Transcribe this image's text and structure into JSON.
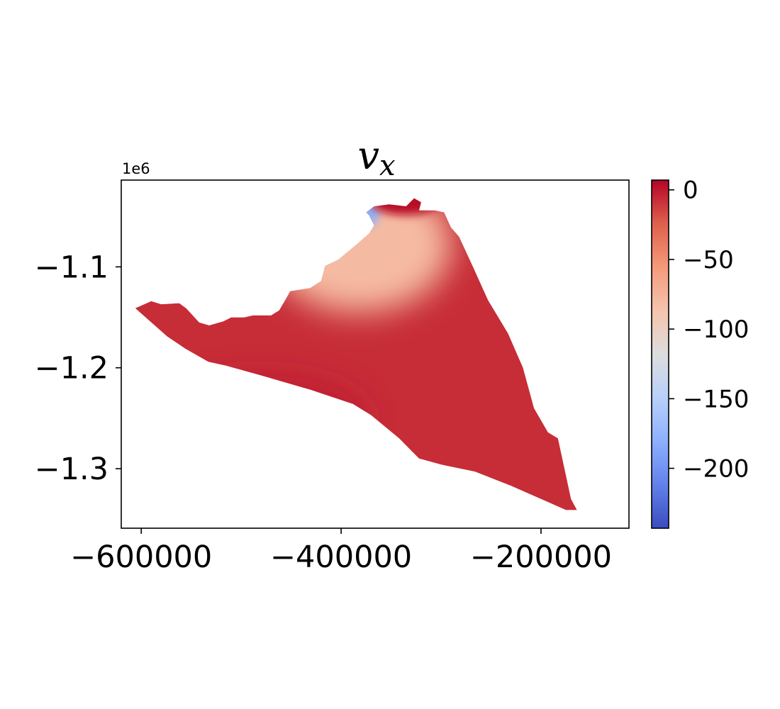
{
  "chart_data": {
    "type": "heatmap",
    "title": "v",
    "title_subscript": "x",
    "xlabel": "",
    "ylabel": "",
    "xlim": [
      -620000,
      -112000
    ],
    "ylim": [
      -1359000,
      -1014000
    ],
    "x_offset_text": "",
    "y_offset_text": "1e6",
    "x_ticks": [
      {
        "value": -600000,
        "label": "−600000"
      },
      {
        "value": -400000,
        "label": "−400000"
      },
      {
        "value": -200000,
        "label": "−200000"
      }
    ],
    "y_ticks": [
      {
        "value": -1100000,
        "label": "−1.1"
      },
      {
        "value": -1200000,
        "label": "−1.2"
      },
      {
        "value": -1300000,
        "label": "−1.3"
      }
    ],
    "colorbar": {
      "colormap": "coolwarm",
      "range": [
        -243,
        7
      ],
      "ticks": [
        {
          "value": 0,
          "label": "0"
        },
        {
          "value": -50,
          "label": "−50"
        },
        {
          "value": -100,
          "label": "−100"
        },
        {
          "value": -150,
          "label": "−150"
        },
        {
          "value": -200,
          "label": "−200"
        }
      ],
      "colors": {
        "low": "#3b4cc0",
        "mid": "#dddddd",
        "high": "#b40426"
      }
    },
    "domain_outline": [
      [
        -606000,
        -1141000
      ],
      [
        -590000,
        -1134000
      ],
      [
        -580000,
        -1137000
      ],
      [
        -562000,
        -1136000
      ],
      [
        -555000,
        -1141000
      ],
      [
        -542000,
        -1155000
      ],
      [
        -532000,
        -1158000
      ],
      [
        -518000,
        -1154000
      ],
      [
        -510000,
        -1150000
      ],
      [
        -497000,
        -1150000
      ],
      [
        -488000,
        -1148000
      ],
      [
        -470000,
        -1148000
      ],
      [
        -462000,
        -1143000
      ],
      [
        -456000,
        -1133000
      ],
      [
        -451000,
        -1124000
      ],
      [
        -431000,
        -1121000
      ],
      [
        -420000,
        -1114000
      ],
      [
        -416000,
        -1099000
      ],
      [
        -403000,
        -1093000
      ],
      [
        -386000,
        -1079000
      ],
      [
        -372000,
        -1067000
      ],
      [
        -367000,
        -1059000
      ],
      [
        -372000,
        -1049000
      ],
      [
        -375000,
        -1046000
      ],
      [
        -367000,
        -1040000
      ],
      [
        -352000,
        -1038000
      ],
      [
        -335000,
        -1040000
      ],
      [
        -327000,
        -1032000
      ],
      [
        -320000,
        -1036000
      ],
      [
        -322000,
        -1044000
      ],
      [
        -306000,
        -1044000
      ],
      [
        -297000,
        -1046000
      ],
      [
        -290000,
        -1061000
      ],
      [
        -282000,
        -1070000
      ],
      [
        -268000,
        -1100000
      ],
      [
        -253000,
        -1133000
      ],
      [
        -233000,
        -1166000
      ],
      [
        -218000,
        -1200000
      ],
      [
        -207000,
        -1240000
      ],
      [
        -193000,
        -1264000
      ],
      [
        -183000,
        -1270000
      ],
      [
        -170000,
        -1330000
      ],
      [
        -164000,
        -1341000
      ],
      [
        -175000,
        -1341000
      ],
      [
        -230000,
        -1317000
      ],
      [
        -266000,
        -1303000
      ],
      [
        -300000,
        -1296000
      ],
      [
        -322000,
        -1290000
      ],
      [
        -342000,
        -1270000
      ],
      [
        -370000,
        -1247000
      ],
      [
        -388000,
        -1236000
      ],
      [
        -430000,
        -1222000
      ],
      [
        -482000,
        -1207000
      ],
      [
        -515000,
        -1198000
      ],
      [
        -533000,
        -1194000
      ],
      [
        -556000,
        -1181000
      ],
      [
        -574000,
        -1169000
      ],
      [
        -590000,
        -1155000
      ]
    ],
    "field_features": [
      {
        "kind": "background",
        "value": -7
      },
      {
        "kind": "slow_band",
        "x": -480000,
        "y": -1250000,
        "value": -2
      },
      {
        "kind": "fast_flow_core",
        "x": -382000,
        "y": -1078000,
        "value": -80
      },
      {
        "kind": "extreme_min",
        "x": -372000,
        "y": -1047000,
        "value": -180
      },
      {
        "kind": "coastal_max",
        "x": -336000,
        "y": -1036000,
        "value": 5
      }
    ]
  }
}
